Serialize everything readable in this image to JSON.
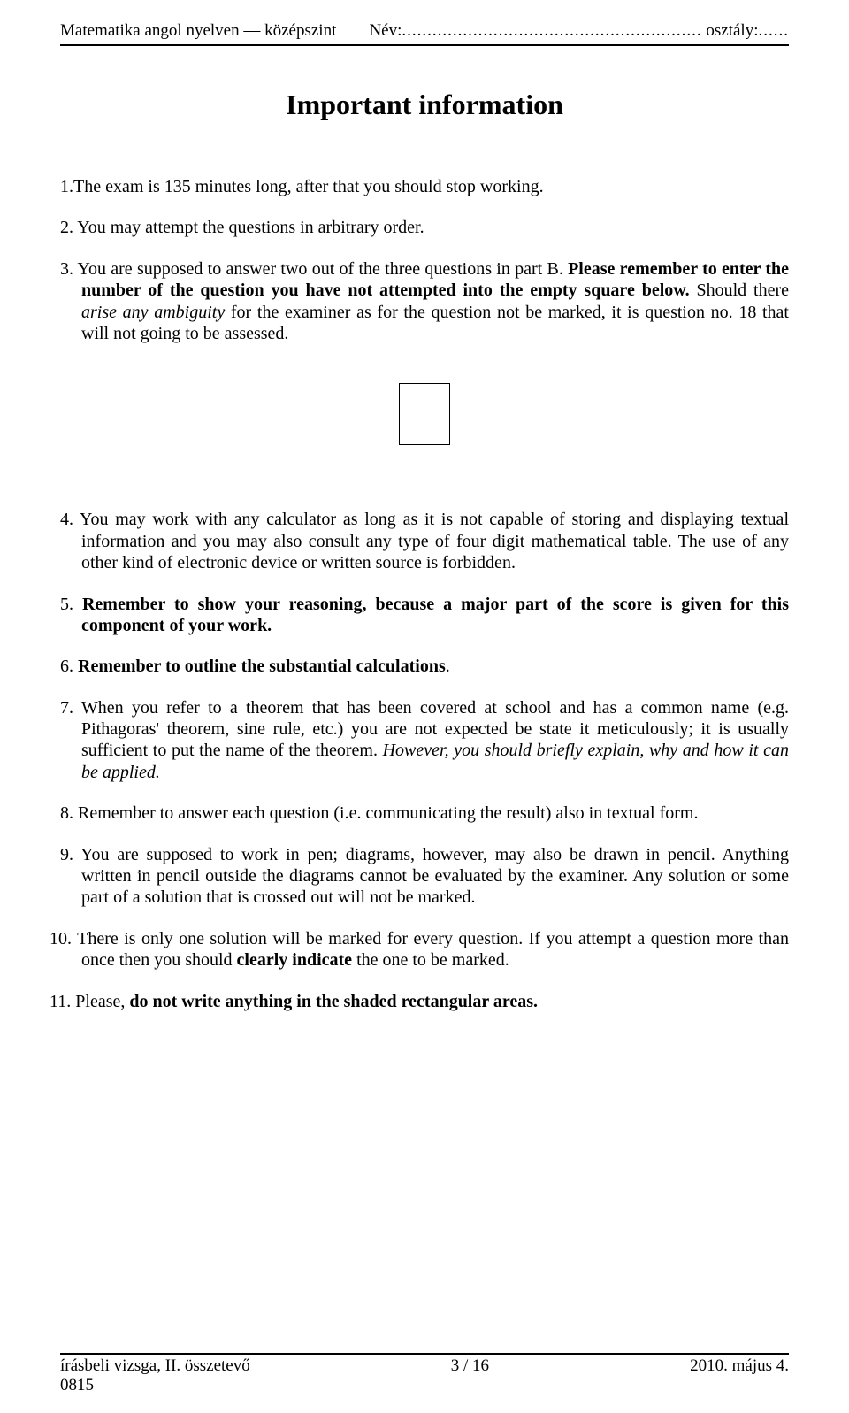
{
  "header": {
    "left": "Matematika angol nyelven — középszint",
    "name_label": "Név:",
    "name_dots": "...........................................................",
    "class_label": " osztály:",
    "class_dots": "......"
  },
  "title": "Important information",
  "items": {
    "i1": "1.The exam is 135 minutes long, after that you should stop working.",
    "i2": "2. You may attempt the questions in arbitrary order.",
    "i3_a": "3. You are supposed to answer two out of the three questions in part B. ",
    "i3_b": "Please remember to enter the number of the question you have not attempted into the empty square below.",
    "i3_c": " Should there ",
    "i3_d": "arise any ambiguity",
    "i3_e": " for the examiner as for the question not be marked, it is question no. 18 that will not going to be assessed.",
    "i4": "4. You may work with any calculator as long as it is not capable of storing and displaying textual information and you may also consult any type of four digit mathematical table. The use of any other kind of electronic device or written source is forbidden.",
    "i5_a": "5. ",
    "i5_b": "Remember to show your reasoning, because a major part of the score is given for this component of your work.",
    "i6_a": "6. ",
    "i6_b": "Remember to outline the substantial calculations",
    "i6_c": ".",
    "i7_a": "7. When you refer to a theorem that has been covered at school and has a common name (e.g. Pithagoras' theorem, sine rule, etc.) you are not expected be state it meticulously; it is usually sufficient to put the name of the theorem. ",
    "i7_b": "However, you should briefly explain, why and how it can be applied.",
    "i8": "8. Remember to answer each question (i.e. communicating the result) also in textual form.",
    "i9": "9. You are supposed to work in pen; diagrams, however, may also be drawn in pencil. Anything written in pencil outside the diagrams cannot be evaluated by the examiner. Any solution or some part of a solution that is crossed out will not be marked.",
    "i10_a": "10. There is only one solution will be marked for every question. If you attempt a question more than once then you should ",
    "i10_b": "clearly indicate",
    "i10_c": " the one to be marked.",
    "i11_a": "11. Please, ",
    "i11_b": "do not write anything in the shaded rectangular areas."
  },
  "footer": {
    "left_line1": "írásbeli vizsga, II. összetevő",
    "left_line2": "0815",
    "center": "3 / 16",
    "right": "2010. május 4."
  }
}
